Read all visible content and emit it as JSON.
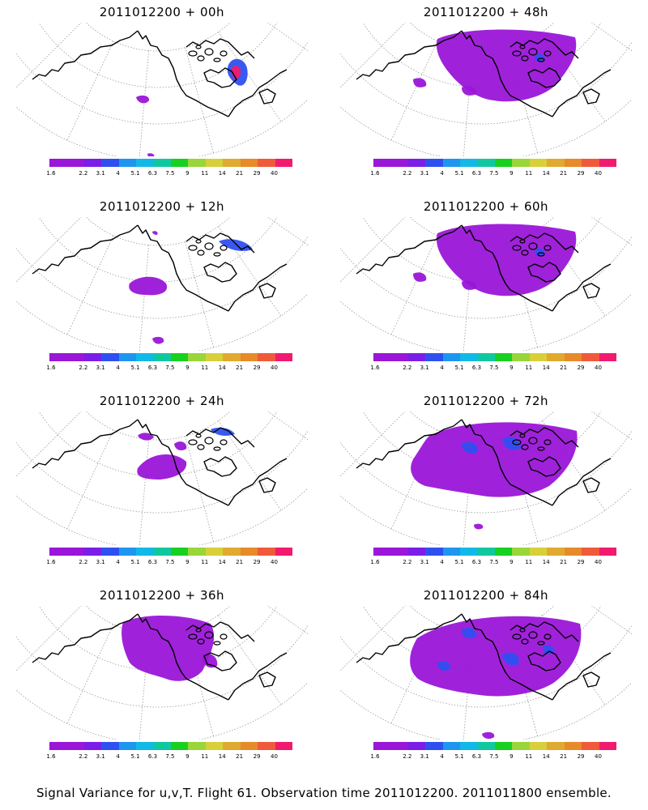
{
  "panels": [
    {
      "id": "p00",
      "title": "2011012200 + 00h",
      "coverage": "minimal",
      "col": 0,
      "row": 0
    },
    {
      "id": "p48",
      "title": "2011012200 + 48h",
      "coverage": "large",
      "col": 1,
      "row": 0
    },
    {
      "id": "p12",
      "title": "2011012200 + 12h",
      "coverage": "small",
      "col": 0,
      "row": 1
    },
    {
      "id": "p60",
      "title": "2011012200 + 60h",
      "coverage": "large",
      "col": 1,
      "row": 1
    },
    {
      "id": "p24",
      "title": "2011012200 + 24h",
      "coverage": "medium",
      "col": 0,
      "row": 2
    },
    {
      "id": "p72",
      "title": "2011012200 + 72h",
      "coverage": "larger",
      "col": 1,
      "row": 2
    },
    {
      "id": "p36",
      "title": "2011012200 + 36h",
      "coverage": "medium-large",
      "col": 0,
      "row": 3
    },
    {
      "id": "p84",
      "title": "2011012200 + 84h",
      "coverage": "largest",
      "col": 1,
      "row": 3
    }
  ],
  "colorbar": {
    "labels": [
      "1.6",
      "2.2",
      "3.1",
      "4",
      "5.1",
      "6.3",
      "7.5",
      "9",
      "11",
      "14",
      "21",
      "29",
      "40"
    ],
    "colors": [
      "#9a16d8",
      "#7a1ee8",
      "#2f50f0",
      "#1e96f0",
      "#12b8e6",
      "#10c8a0",
      "#18d020",
      "#98d63a",
      "#d8d03a",
      "#e0aa30",
      "#e68a2a",
      "#f05a3a",
      "#f21a6e"
    ]
  },
  "footer": "Signal Variance for u,v,T. Flight 61. Observation time 2011012200. 2011011800 ensemble.",
  "fill_color": "#9a16d8",
  "highlight_color": "#2f50f0"
}
